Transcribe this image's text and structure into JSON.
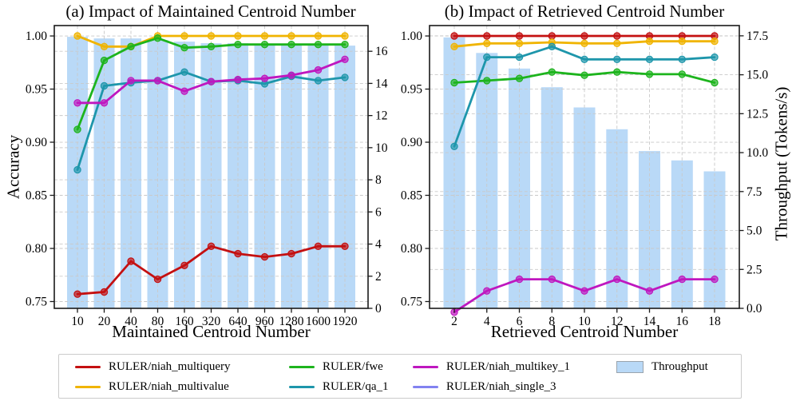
{
  "legend": {
    "items": [
      {
        "label": "RULER/niah_multiquery",
        "color": "#c41011",
        "type": "line"
      },
      {
        "label": "RULER/niah_multivalue",
        "color": "#f0b400",
        "type": "line"
      },
      {
        "label": "RULER/fwe",
        "color": "#1db41d",
        "type": "line"
      },
      {
        "label": "RULER/qa_1",
        "color": "#1e96ab",
        "type": "line"
      },
      {
        "label": "RULER/niah_multikey_1",
        "color": "#bf17bf",
        "type": "line"
      },
      {
        "label": "RULER/niah_single_3",
        "color": "#8282f0",
        "type": "line"
      },
      {
        "label": "Throughput",
        "color": "#b9d9f7",
        "border": "#9aa4ad",
        "type": "patch"
      }
    ]
  },
  "chart_data": [
    {
      "id": "a",
      "type": "line+bar",
      "title": "(a) Impact of Maintained Centroid Number",
      "xlabel": "Maintained Centroid Number",
      "ylabel_left": "Accuracy",
      "x_tick_labels": [
        "10",
        "20",
        "40",
        "80",
        "160",
        "320",
        "640",
        "960",
        "1280",
        "1600",
        "1920"
      ],
      "ylim_left": [
        0.7436,
        1.0098
      ],
      "yticks_left": {
        "values": [
          0.75,
          0.8,
          0.85,
          0.9,
          0.95,
          1.0
        ],
        "labels": [
          "0.75",
          "0.80",
          "0.85",
          "0.90",
          "0.95",
          "1.00"
        ]
      },
      "ylim_right": [
        0,
        17.6
      ],
      "yticks_right": {
        "values": [
          0,
          2,
          4,
          6,
          8,
          10,
          12,
          14,
          16
        ],
        "labels": [
          "0",
          "2",
          "4",
          "6",
          "8",
          "10",
          "12",
          "14",
          "16"
        ]
      },
      "grid": true,
      "legend_position": "below-figure",
      "bars": {
        "name": "Throughput",
        "color": "#b9d9f7",
        "values": [
          16.9,
          16.8,
          16.8,
          16.7,
          16.6,
          16.5,
          16.5,
          16.4,
          16.4,
          16.4,
          16.35
        ]
      },
      "series": [
        {
          "name": "RULER/niah_multiquery",
          "color": "#c41011",
          "values": [
            0.757,
            0.759,
            0.788,
            0.771,
            0.784,
            0.802,
            0.795,
            0.792,
            0.795,
            0.802,
            0.802
          ]
        },
        {
          "name": "RULER/niah_multivalue",
          "color": "#f0b400",
          "values": [
            1.0,
            0.99,
            0.99,
            1.0,
            1.0,
            1.0,
            1.0,
            1.0,
            1.0,
            1.0,
            1.0
          ]
        },
        {
          "name": "RULER/fwe",
          "color": "#1db41d",
          "values": [
            0.912,
            0.977,
            0.99,
            0.998,
            0.989,
            0.99,
            0.992,
            0.992,
            0.992,
            0.992,
            0.992
          ]
        },
        {
          "name": "RULER/qa_1",
          "color": "#1e96ab",
          "values": [
            0.874,
            0.953,
            0.956,
            0.958,
            0.966,
            0.957,
            0.958,
            0.955,
            0.962,
            0.958,
            0.961
          ]
        },
        {
          "name": "RULER/niah_multikey_1",
          "color": "#bf17bf",
          "values": [
            0.937,
            0.937,
            0.958,
            0.958,
            0.948,
            0.957,
            0.959,
            0.96,
            0.963,
            0.968,
            0.978
          ]
        }
      ]
    },
    {
      "id": "b",
      "type": "line+bar",
      "title": "(b) Impact of Retrieved Centroid Number",
      "xlabel": "Retrieved Centroid Number",
      "ylabel_right": "Throughput (Tokens/s)",
      "x_tick_labels": [
        "2",
        "4",
        "6",
        "8",
        "10",
        "12",
        "14",
        "16",
        "18"
      ],
      "ylim_left": [
        0.7436,
        1.0098
      ],
      "yticks_left": {
        "values": [
          0.75,
          0.8,
          0.85,
          0.9,
          0.95,
          1.0
        ],
        "labels": [
          "0.75",
          "0.80",
          "0.85",
          "0.90",
          "0.95",
          "1.00"
        ]
      },
      "ylim_right": [
        0,
        18.16
      ],
      "yticks_right": {
        "values": [
          0,
          2.5,
          5,
          7.5,
          10,
          12.5,
          15,
          17.5
        ],
        "labels": [
          "0.0",
          "2.5",
          "5.0",
          "7.5",
          "10.0",
          "12.5",
          "15.0",
          "17.5"
        ]
      },
      "grid": true,
      "bars": {
        "name": "Throughput",
        "color": "#b9d9f7",
        "values": [
          17.4,
          16.4,
          15.4,
          14.2,
          12.9,
          11.5,
          10.1,
          9.5,
          8.8
        ]
      },
      "series": [
        {
          "name": "RULER/niah_multiquery",
          "color": "#c41011",
          "values": [
            1.0,
            1.0,
            1.0,
            1.0,
            1.0,
            1.0,
            1.0,
            1.0,
            1.0
          ]
        },
        {
          "name": "RULER/niah_multivalue",
          "color": "#f0b400",
          "values": [
            0.99,
            0.993,
            0.993,
            0.994,
            0.993,
            0.993,
            0.995,
            0.995,
            0.995
          ]
        },
        {
          "name": "RULER/fwe",
          "color": "#1db41d",
          "values": [
            0.956,
            0.958,
            0.96,
            0.966,
            0.963,
            0.966,
            0.964,
            0.964,
            0.956
          ]
        },
        {
          "name": "RULER/qa_1",
          "color": "#1e96ab",
          "values": [
            0.896,
            0.98,
            0.98,
            0.99,
            0.978,
            0.978,
            0.978,
            0.978,
            0.98
          ]
        },
        {
          "name": "RULER/niah_multikey_1",
          "color": "#bf17bf",
          "values": [
            0.74,
            0.76,
            0.771,
            0.771,
            0.76,
            0.771,
            0.76,
            0.771,
            0.771
          ]
        }
      ]
    }
  ]
}
